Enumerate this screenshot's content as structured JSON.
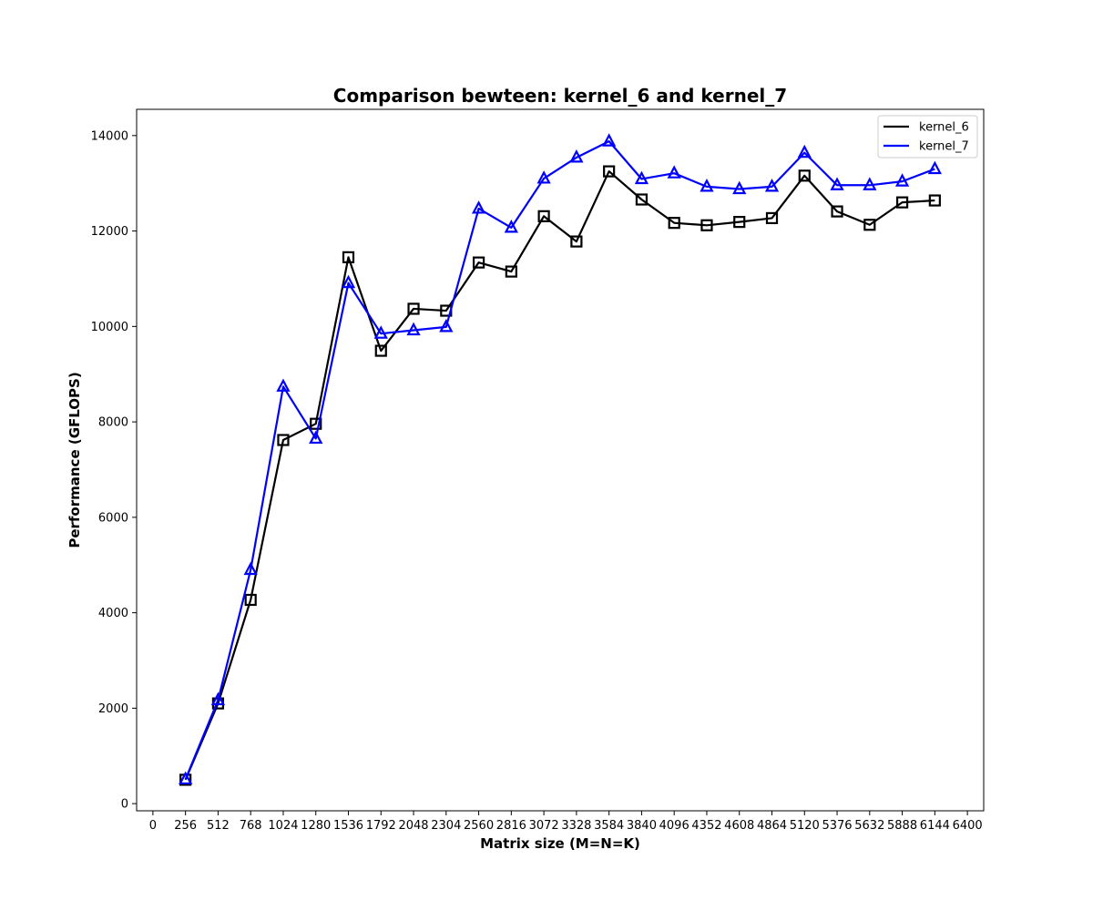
{
  "chart_data": {
    "type": "line",
    "title": "Comparison bewteen: kernel_6 and kernel_7",
    "xlabel": "Matrix size (M=N=K)",
    "ylabel": "Performance (GFLOPS)",
    "xlim": [
      -128,
      6528
    ],
    "ylim": [
      -150,
      14550
    ],
    "x_ticks": [
      0,
      256,
      512,
      768,
      1024,
      1280,
      1536,
      1792,
      2048,
      2304,
      2560,
      2816,
      3072,
      3328,
      3584,
      3840,
      4096,
      4352,
      4608,
      4864,
      5120,
      5376,
      5632,
      5888,
      6144,
      6400
    ],
    "y_ticks": [
      0,
      2000,
      4000,
      6000,
      8000,
      10000,
      12000,
      14000
    ],
    "grid": false,
    "legend_position": "top-right",
    "x": [
      256,
      512,
      768,
      1024,
      1280,
      1536,
      1792,
      2048,
      2304,
      2560,
      2816,
      3072,
      3328,
      3584,
      3840,
      4096,
      4352,
      4608,
      4864,
      5120,
      5376,
      5632,
      5888,
      6144
    ],
    "series": [
      {
        "name": "kernel_6",
        "color": "#000000",
        "marker": "square",
        "values": [
          500,
          2100,
          4270,
          7620,
          7960,
          11450,
          9490,
          10370,
          10330,
          11340,
          11150,
          12310,
          11780,
          13250,
          12660,
          12170,
          12120,
          12190,
          12270,
          13160,
          12410,
          12130,
          12600,
          12640
        ]
      },
      {
        "name": "kernel_7",
        "color": "#0000ff",
        "marker": "triangle",
        "values": [
          510,
          2170,
          4900,
          8740,
          7650,
          10910,
          9850,
          9920,
          9990,
          12470,
          12070,
          13100,
          13540,
          13880,
          13090,
          13210,
          12930,
          12880,
          12930,
          13640,
          12960,
          12960,
          13040,
          13300
        ]
      }
    ]
  }
}
